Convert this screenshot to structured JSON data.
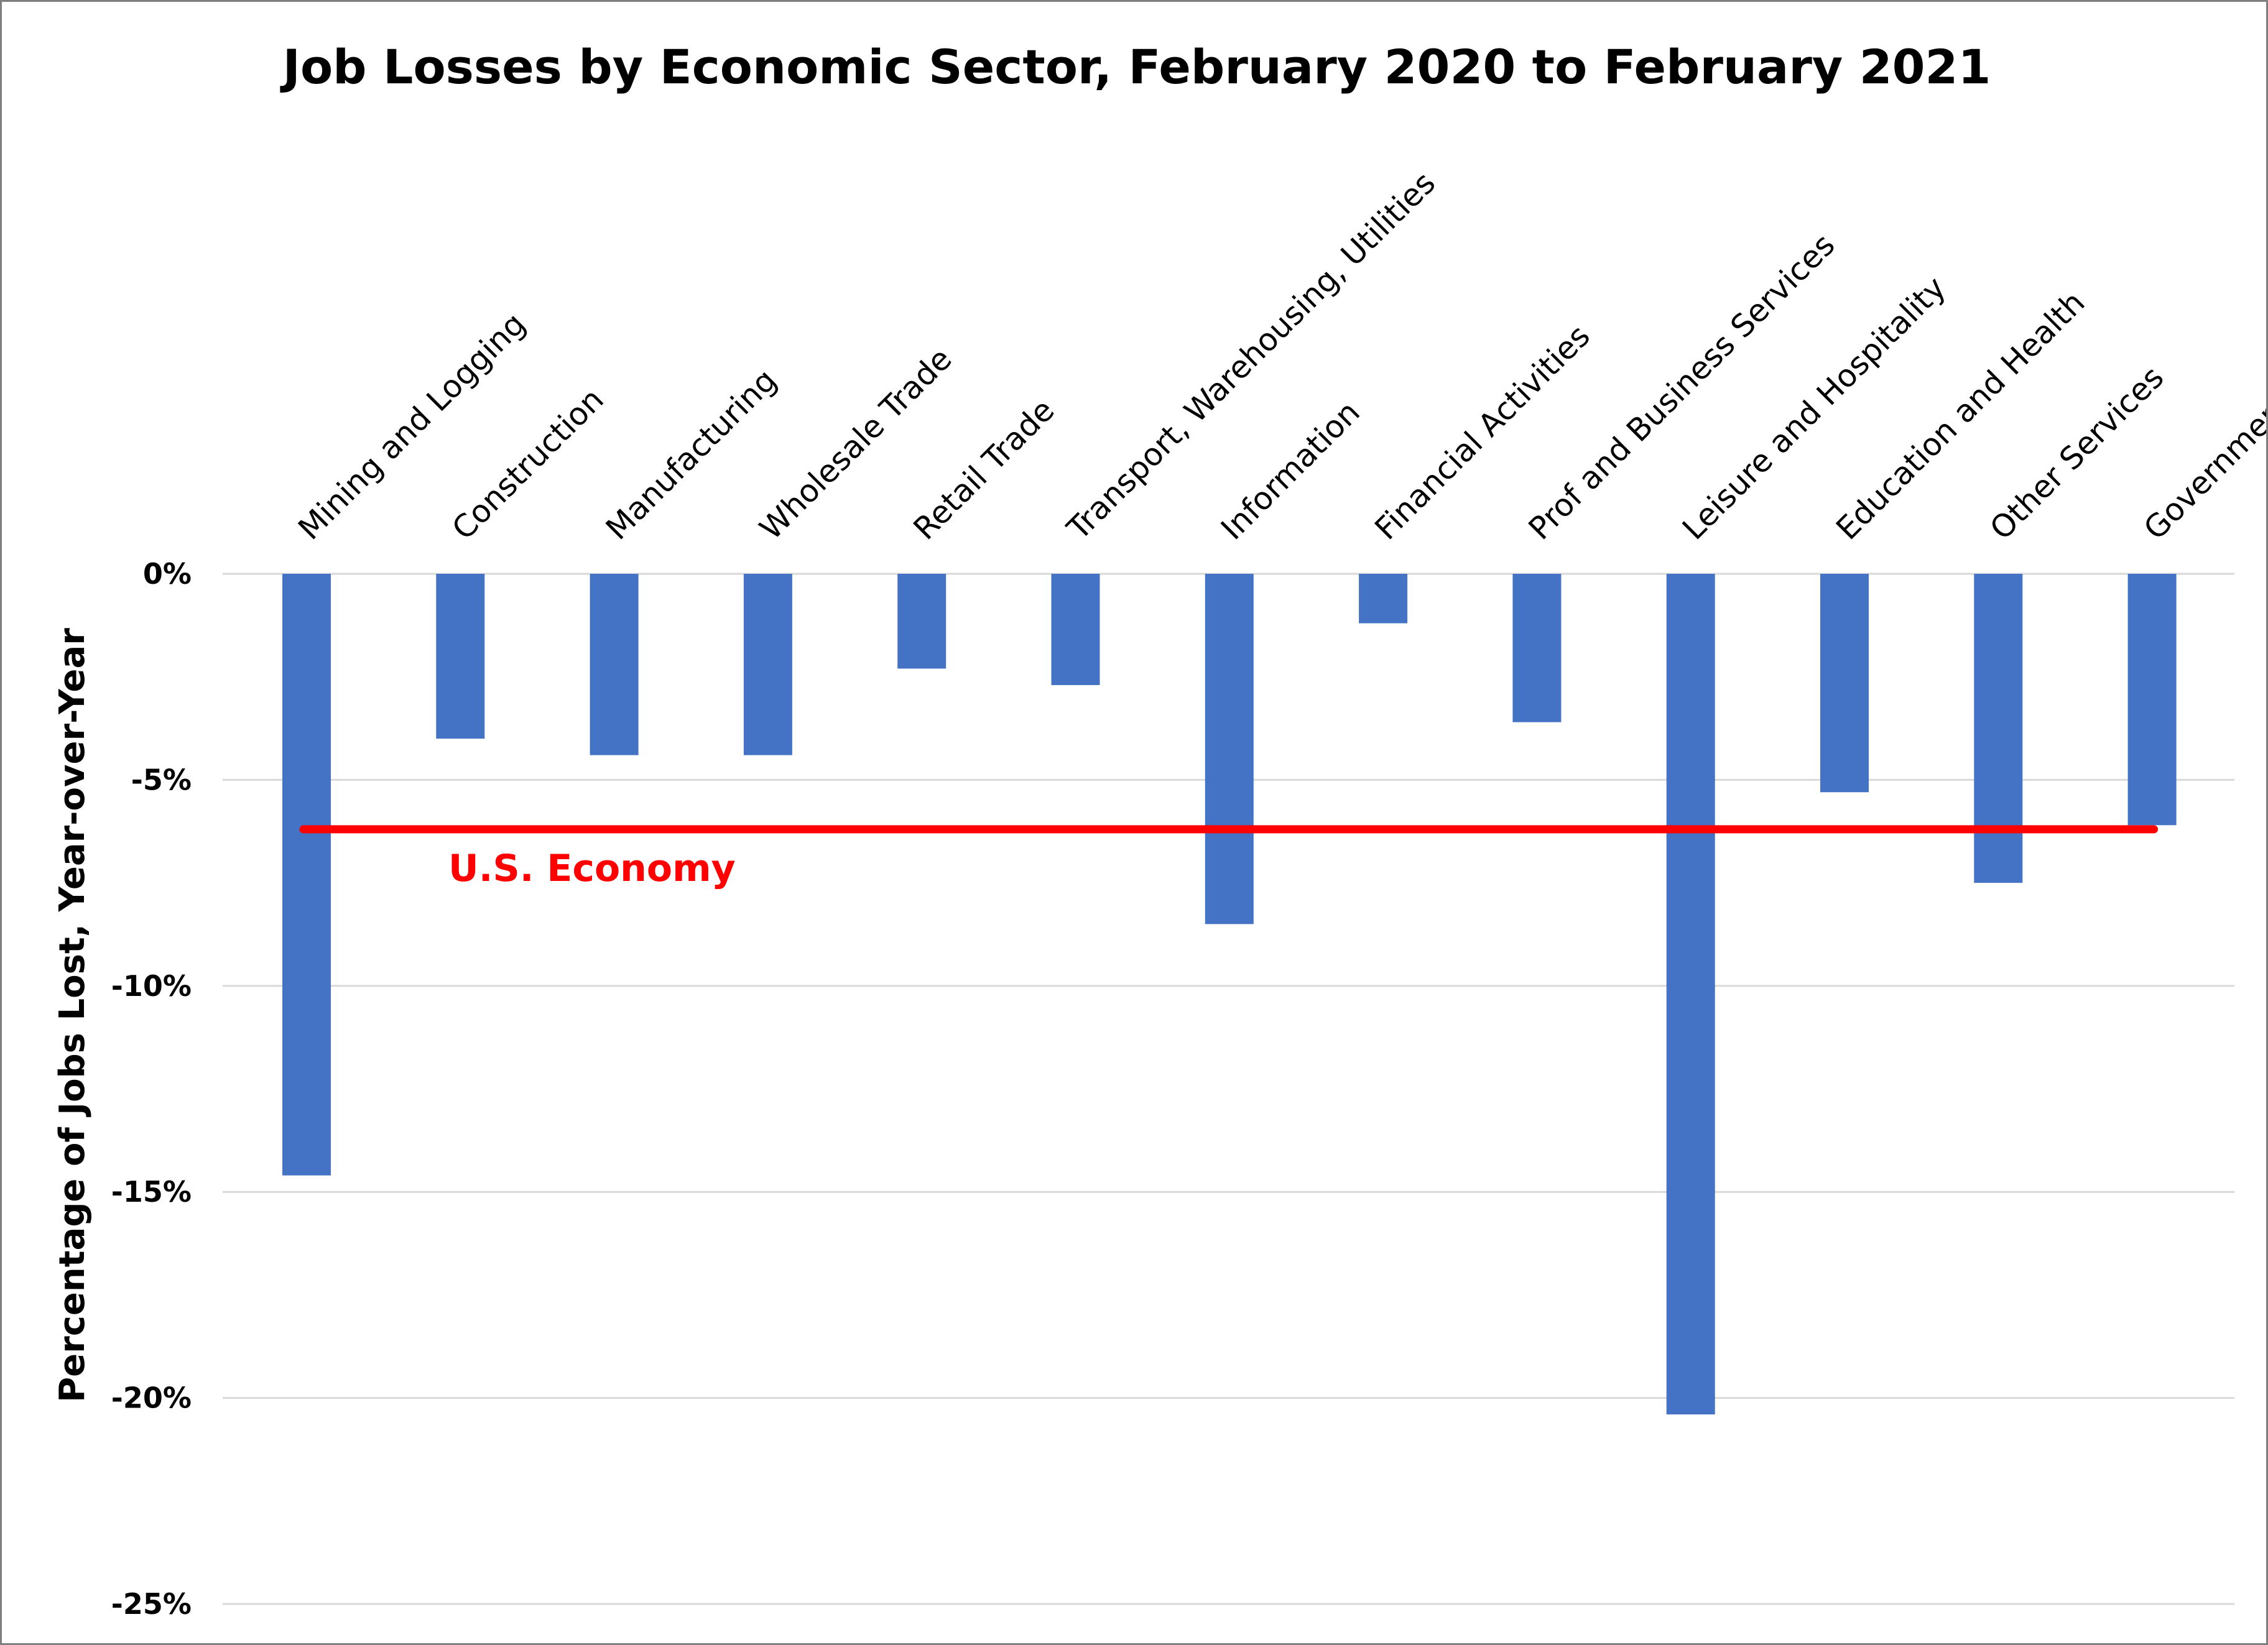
{
  "chart_data": {
    "type": "bar",
    "title": "Job Losses by Economic Sector, February 2020 to February 2021",
    "xlabel": "",
    "ylabel": "Percentage of Jobs Lost,  Year-over-Year",
    "categories": [
      "Mining and Logging",
      "Construction",
      "Manufacturing",
      "Wholesale Trade",
      "Retail Trade",
      "Transport, Warehousing, Utilities",
      "Information",
      "Financial Activities",
      "Prof and Business Services",
      "Leisure and Hospitality",
      "Education and Health",
      "Other Services",
      "Government"
    ],
    "series": [
      {
        "values": [
          -14.6,
          -4.0,
          -4.4,
          -4.4,
          -2.3,
          -2.7,
          -8.5,
          -1.2,
          -3.6,
          -20.4,
          -5.3,
          -7.5,
          -6.1
        ]
      }
    ],
    "ylim": [
      -25,
      0
    ],
    "yticks": [
      0,
      -5,
      -10,
      -15,
      -20,
      -25
    ],
    "ytick_labels": [
      "0%",
      "-5%",
      "-10%",
      "-15%",
      "-20%",
      "-25%"
    ],
    "grid": "horizontal",
    "bar_color": "#4472c4",
    "reference_line": {
      "label": "U.S. Economy",
      "value": -6.2,
      "color": "#ff0000"
    }
  }
}
